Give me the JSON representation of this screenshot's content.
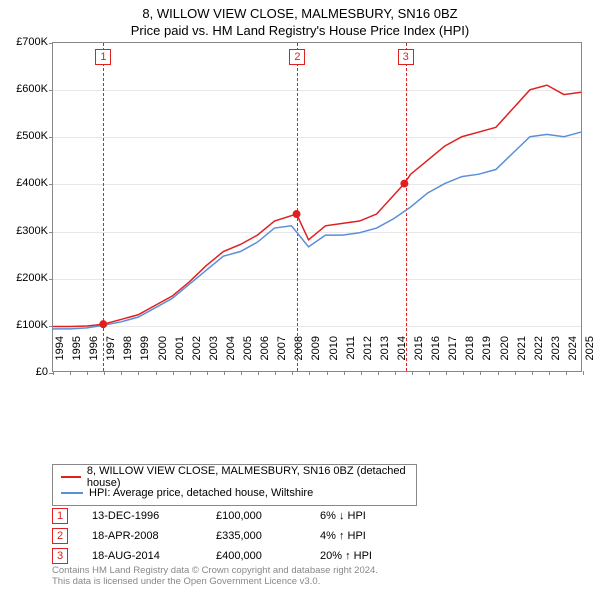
{
  "title_main": "8, WILLOW VIEW CLOSE, MALMESBURY, SN16 0BZ",
  "title_sub": "Price paid vs. HM Land Registry's House Price Index (HPI)",
  "chart": {
    "type": "line",
    "x_min": 1994,
    "x_max": 2025,
    "y_min": 0,
    "y_max": 700000,
    "y_ticks": [
      0,
      100000,
      200000,
      300000,
      400000,
      500000,
      600000,
      700000
    ],
    "y_tick_labels": [
      "£0",
      "£100K",
      "£200K",
      "£300K",
      "£400K",
      "£500K",
      "£600K",
      "£700K"
    ],
    "x_ticks": [
      1994,
      1995,
      1996,
      1997,
      1998,
      1999,
      2000,
      2001,
      2002,
      2003,
      2004,
      2005,
      2006,
      2007,
      2008,
      2009,
      2010,
      2011,
      2012,
      2013,
      2014,
      2015,
      2016,
      2017,
      2018,
      2019,
      2020,
      2021,
      2022,
      2023,
      2024,
      2025
    ],
    "background_color": "#ffffff",
    "grid_color": "#e8e8e8",
    "border_color": "#888888",
    "label_fontsize": 11,
    "series": {
      "property": {
        "color": "#e02020",
        "width": 1.5,
        "points": [
          [
            1994,
            95000
          ],
          [
            1995,
            95000
          ],
          [
            1996,
            96000
          ],
          [
            1996.95,
            100000
          ],
          [
            1998,
            110000
          ],
          [
            1999,
            120000
          ],
          [
            2000,
            140000
          ],
          [
            2001,
            160000
          ],
          [
            2002,
            190000
          ],
          [
            2003,
            225000
          ],
          [
            2004,
            255000
          ],
          [
            2005,
            270000
          ],
          [
            2006,
            290000
          ],
          [
            2007,
            320000
          ],
          [
            2008.3,
            335000
          ],
          [
            2009,
            280000
          ],
          [
            2010,
            310000
          ],
          [
            2011,
            315000
          ],
          [
            2012,
            320000
          ],
          [
            2013,
            335000
          ],
          [
            2014.63,
            400000
          ],
          [
            2015,
            420000
          ],
          [
            2016,
            450000
          ],
          [
            2017,
            480000
          ],
          [
            2018,
            500000
          ],
          [
            2019,
            510000
          ],
          [
            2020,
            520000
          ],
          [
            2021,
            560000
          ],
          [
            2022,
            600000
          ],
          [
            2023,
            610000
          ],
          [
            2024,
            590000
          ],
          [
            2025,
            595000
          ]
        ]
      },
      "hpi": {
        "color": "#5b8fd6",
        "width": 1.5,
        "points": [
          [
            1994,
            90000
          ],
          [
            1995,
            90000
          ],
          [
            1996,
            92000
          ],
          [
            1997,
            98000
          ],
          [
            1998,
            105000
          ],
          [
            1999,
            115000
          ],
          [
            2000,
            135000
          ],
          [
            2001,
            155000
          ],
          [
            2002,
            185000
          ],
          [
            2003,
            215000
          ],
          [
            2004,
            245000
          ],
          [
            2005,
            255000
          ],
          [
            2006,
            275000
          ],
          [
            2007,
            305000
          ],
          [
            2008,
            310000
          ],
          [
            2009,
            265000
          ],
          [
            2010,
            290000
          ],
          [
            2011,
            290000
          ],
          [
            2012,
            295000
          ],
          [
            2013,
            305000
          ],
          [
            2014,
            325000
          ],
          [
            2015,
            350000
          ],
          [
            2016,
            380000
          ],
          [
            2017,
            400000
          ],
          [
            2018,
            415000
          ],
          [
            2019,
            420000
          ],
          [
            2020,
            430000
          ],
          [
            2021,
            465000
          ],
          [
            2022,
            500000
          ],
          [
            2023,
            505000
          ],
          [
            2024,
            500000
          ],
          [
            2025,
            510000
          ]
        ]
      }
    },
    "markers": [
      {
        "x": 1996.95,
        "y": 100000,
        "color": "#e02020"
      },
      {
        "x": 2008.3,
        "y": 335000,
        "color": "#e02020"
      },
      {
        "x": 2014.63,
        "y": 400000,
        "color": "#e02020"
      }
    ],
    "event_lines": [
      {
        "x": 1996.95,
        "label": "1"
      },
      {
        "x": 2008.3,
        "label": "2"
      },
      {
        "x": 2014.63,
        "label": "3"
      }
    ]
  },
  "legend": {
    "items": [
      {
        "color": "#e02020",
        "label": "8, WILLOW VIEW CLOSE, MALMESBURY, SN16 0BZ (detached house)"
      },
      {
        "color": "#5b8fd6",
        "label": "HPI: Average price, detached house, Wiltshire"
      }
    ]
  },
  "events": [
    {
      "num": "1",
      "date": "13-DEC-1996",
      "price": "£100,000",
      "hpi": "6% ↓ HPI"
    },
    {
      "num": "2",
      "date": "18-APR-2008",
      "price": "£335,000",
      "hpi": "4% ↑ HPI"
    },
    {
      "num": "3",
      "date": "18-AUG-2014",
      "price": "£400,000",
      "hpi": "20% ↑ HPI"
    }
  ],
  "footer_line1": "Contains HM Land Registry data © Crown copyright and database right 2024.",
  "footer_line2": "This data is licensed under the Open Government Licence v3.0."
}
